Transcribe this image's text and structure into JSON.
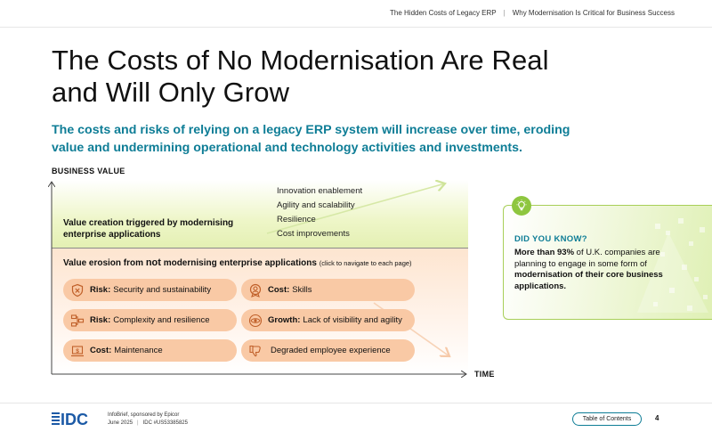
{
  "header": {
    "crumb_1": "The Hidden Costs of Legacy ERP",
    "crumb_separator": "|",
    "crumb_2": "Why Modernisation Is Critical for Business Success"
  },
  "title_line_1": "The Costs of No Modernisation Are Real",
  "title_line_2": "and Will Only Grow",
  "subtitle": "The costs and risks of relying on a legacy ERP system will increase over time, eroding value and undermining operational and technology activities and investments.",
  "chart": {
    "y_axis_label": "BUSINESS VALUE",
    "x_axis_label": "TIME",
    "value_creation_label": "Value creation triggered by modernising enterprise applications",
    "benefits": [
      "Innovation enablement",
      "Agility and scalability",
      "Resilience",
      "Cost improvements"
    ],
    "value_erosion": {
      "prefix": "Value erosion from ",
      "emphasis": "not",
      "suffix": " modernising enterprise applications",
      "note": "(click to navigate to each page)"
    },
    "pills": [
      {
        "bold": "Risk:",
        "text": "Security and sustainability",
        "icon": "shield-icon"
      },
      {
        "bold": "Cost:",
        "text": "Skills",
        "icon": "skills-badge-icon"
      },
      {
        "bold": "Risk:",
        "text": "Complexity and resilience",
        "icon": "network-icon"
      },
      {
        "bold": "Growth:",
        "text": "Lack of visibility and agility",
        "icon": "eye-icon"
      },
      {
        "bold": "Cost:",
        "text": "Maintenance",
        "icon": "laptop-dollar-icon"
      },
      {
        "bold": "",
        "text": "Degraded employee experience",
        "icon": "thumbs-down-icon"
      }
    ],
    "colors": {
      "green_zone": "#e4f0b3",
      "orange_zone": "#fde5d0",
      "pill": "#f9c9a5",
      "accent": "#0e7d96"
    }
  },
  "did_you_know": {
    "icon": "lightbulb-icon",
    "heading": "DID YOU KNOW?",
    "t1": "More than 93%",
    "t2": " of U.K. companies are planning to engage in some form of ",
    "t3": "modernisation of their core business applications."
  },
  "footer": {
    "logo": "IDC",
    "line1": "InfoBrief, sponsored by Epicor",
    "date": "June 2025",
    "separator": "|",
    "doc_id": "IDC #US53385825",
    "toc_label": "Table of Contents",
    "page_number": "4"
  }
}
